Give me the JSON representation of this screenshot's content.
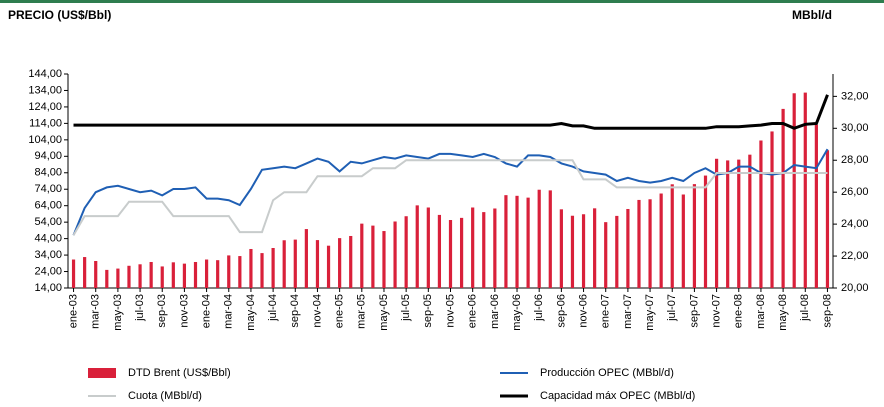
{
  "header": {
    "left": "PRECIO (US$/Bbl)",
    "right": "MBbl/d"
  },
  "chart_data": {
    "type": "bar_line",
    "categories": [
      "ene-03",
      null,
      "mar-03",
      null,
      "may-03",
      null,
      "jul-03",
      null,
      "sep-03",
      null,
      "nov-03",
      null,
      "ene-04",
      null,
      "mar-04",
      null,
      "may-04",
      null,
      "jul-04",
      null,
      "sep-04",
      null,
      "nov-04",
      null,
      "ene-05",
      null,
      "mar-05",
      null,
      "may-05",
      null,
      "jul-05",
      null,
      "sep-05",
      null,
      "nov-05",
      null,
      "ene-06",
      null,
      "mar-06",
      null,
      "may-06",
      null,
      "jul-06",
      null,
      "sep-06",
      null,
      "nov-06",
      null,
      "ene-07",
      null,
      "mar-07",
      null,
      "may-07",
      null,
      "jul-07",
      null,
      "sep-07",
      null,
      "nov-07",
      null,
      "ene-08",
      null,
      "mar-08",
      null,
      "may-08",
      null,
      "jul-08",
      null,
      "sep-08"
    ],
    "series": [
      {
        "name": "DTD Brent (US$/Bbl)",
        "color": "#d9203a",
        "kind": "bar",
        "axis": "y",
        "values": [
          31.3,
          32.8,
          30.4,
          25.0,
          25.8,
          27.5,
          28.4,
          29.8,
          27.1,
          29.6,
          28.8,
          29.8,
          31.3,
          30.9,
          33.8,
          33.4,
          37.7,
          35.2,
          38.3,
          43.0,
          43.4,
          49.8,
          43.1,
          39.7,
          44.3,
          45.6,
          53.1,
          51.9,
          48.6,
          54.4,
          57.6,
          64.2,
          62.9,
          58.4,
          55.3,
          56.6,
          62.9,
          60.1,
          62.3,
          70.4,
          70.0,
          68.9,
          73.7,
          73.3,
          61.8,
          57.9,
          58.8,
          62.4,
          54.0,
          57.8,
          62.0,
          67.5,
          67.9,
          71.4,
          77.0,
          70.8,
          77.1,
          82.3,
          92.5,
          91.5,
          92.0,
          95.0,
          103.6,
          109.1,
          122.8,
          132.3,
          132.7,
          113.2,
          97.7
        ]
      },
      {
        "name": "Producción OPEC (MBbl/d)",
        "color": "#1f5fb4",
        "kind": "line",
        "axis": "y2",
        "values": [
          23.3,
          25.0,
          26.0,
          26.3,
          26.4,
          26.2,
          26.0,
          26.1,
          25.8,
          26.2,
          26.2,
          26.3,
          25.6,
          25.6,
          25.5,
          25.2,
          26.2,
          27.4,
          27.5,
          27.6,
          27.5,
          27.8,
          28.1,
          27.9,
          27.3,
          27.9,
          27.8,
          28.0,
          28.2,
          28.1,
          28.3,
          28.2,
          28.1,
          28.4,
          28.4,
          28.3,
          28.2,
          28.4,
          28.2,
          27.8,
          27.6,
          28.3,
          28.3,
          28.2,
          27.8,
          27.6,
          27.3,
          27.2,
          27.1,
          26.7,
          26.9,
          26.7,
          26.6,
          26.7,
          26.9,
          26.7,
          27.2,
          27.5,
          27.1,
          27.2,
          27.6,
          27.6,
          27.2,
          27.1,
          27.2,
          27.7,
          27.6,
          27.5,
          28.7
        ]
      },
      {
        "name": "Cuota (MBbl/d)",
        "color": "#c8cccc",
        "kind": "line",
        "axis": "y2",
        "values": [
          23.3,
          24.5,
          24.5,
          24.5,
          24.5,
          25.4,
          25.4,
          25.4,
          25.4,
          24.5,
          24.5,
          24.5,
          24.5,
          24.5,
          24.5,
          23.5,
          23.5,
          23.5,
          25.5,
          26.0,
          26.0,
          26.0,
          27.0,
          27.0,
          27.0,
          27.0,
          27.0,
          27.5,
          27.5,
          27.5,
          28.0,
          28.0,
          28.0,
          28.0,
          28.0,
          28.0,
          28.0,
          28.0,
          28.0,
          28.0,
          28.0,
          28.0,
          28.0,
          28.0,
          28.0,
          28.0,
          26.8,
          26.8,
          26.8,
          26.3,
          26.3,
          26.3,
          26.3,
          26.3,
          26.3,
          26.3,
          26.3,
          26.3,
          27.2,
          27.2,
          27.2,
          27.2,
          27.2,
          27.2,
          27.2,
          27.2,
          27.2,
          27.2,
          27.2
        ]
      },
      {
        "name": "Capacidad máx OPEC (MBbl/d)",
        "color": "#000000",
        "kind": "line",
        "axis": "y2",
        "values": [
          30.2,
          30.2,
          30.2,
          30.2,
          30.2,
          30.2,
          30.2,
          30.2,
          30.2,
          30.2,
          30.2,
          30.2,
          30.2,
          30.2,
          30.2,
          30.2,
          30.2,
          30.2,
          30.2,
          30.2,
          30.2,
          30.2,
          30.2,
          30.2,
          30.2,
          30.2,
          30.2,
          30.2,
          30.2,
          30.2,
          30.2,
          30.2,
          30.2,
          30.2,
          30.2,
          30.2,
          30.2,
          30.2,
          30.2,
          30.2,
          30.2,
          30.2,
          30.2,
          30.2,
          30.3,
          30.15,
          30.15,
          30.0,
          30.0,
          30.0,
          30.0,
          30.0,
          30.0,
          30.0,
          30.0,
          30.0,
          30.0,
          30.0,
          30.1,
          30.1,
          30.1,
          30.15,
          30.2,
          30.3,
          30.3,
          30.0,
          30.25,
          30.3,
          32.1
        ]
      }
    ],
    "ylim": [
      14,
      144
    ],
    "yticks": [
      {
        "value": 14,
        "label": "14,00"
      },
      {
        "value": 24,
        "label": "24,00"
      },
      {
        "value": 34,
        "label": "34,00"
      },
      {
        "value": 44,
        "label": "44,00"
      },
      {
        "value": 54,
        "label": "54,00"
      },
      {
        "value": 64,
        "label": "64,00"
      },
      {
        "value": 74,
        "label": "74,00"
      },
      {
        "value": 84,
        "label": "84,00"
      },
      {
        "value": 94,
        "label": "94,00"
      },
      {
        "value": 104,
        "label": "104,00"
      },
      {
        "value": 114,
        "label": "114,00"
      },
      {
        "value": 124,
        "label": "124,00"
      },
      {
        "value": 134,
        "label": "134,00"
      },
      {
        "value": 144,
        "label": "144,00"
      }
    ],
    "y2lim": [
      20,
      33.4
    ],
    "y2ticks": [
      {
        "value": 20,
        "label": "20,00"
      },
      {
        "value": 22,
        "label": "22,00"
      },
      {
        "value": 24,
        "label": "24,00"
      },
      {
        "value": 26,
        "label": "26,00"
      },
      {
        "value": 28,
        "label": "28,00"
      },
      {
        "value": 30,
        "label": "30,00"
      },
      {
        "value": 32,
        "label": "32,00"
      }
    ]
  }
}
